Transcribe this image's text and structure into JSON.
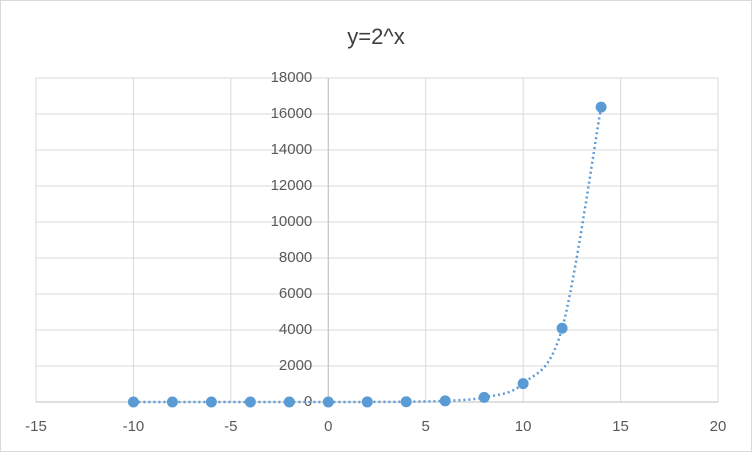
{
  "chart_data": {
    "type": "scatter",
    "title": "y=2^x",
    "x": [
      -10,
      -8,
      -6,
      -4,
      -2,
      0,
      2,
      4,
      6,
      8,
      10,
      12,
      14
    ],
    "series": [
      {
        "color": "#5b9bd5",
        "values": [
          0.0009765625,
          0.00390625,
          0.015625,
          0.0625,
          0.25,
          1,
          4,
          16,
          64,
          256,
          1024,
          4096,
          16384
        ]
      }
    ],
    "xlim": [
      -15,
      20
    ],
    "xticks": [
      -15,
      -10,
      -5,
      0,
      5,
      10,
      15,
      20
    ],
    "ylim": [
      0,
      18000
    ],
    "yticks": [
      0,
      2000,
      4000,
      6000,
      8000,
      10000,
      12000,
      14000,
      16000,
      18000
    ],
    "grid": true,
    "line_style": "dotted",
    "smooth": true
  }
}
